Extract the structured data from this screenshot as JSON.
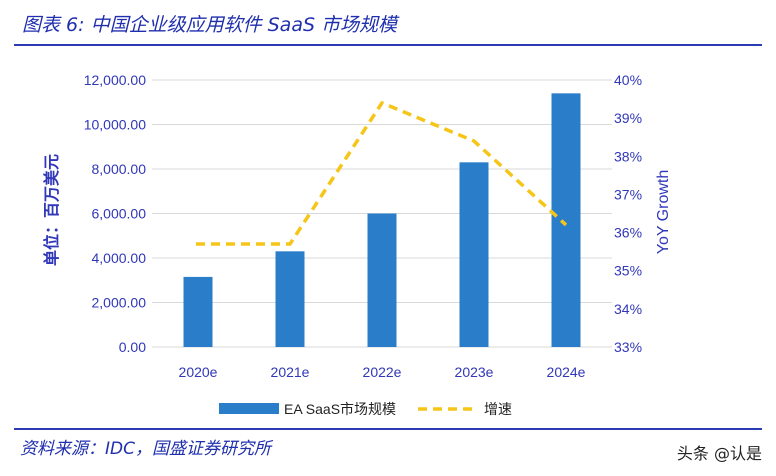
{
  "header": {
    "title": "图表 6:  中国企业级应用软件 SaaS 市场规模"
  },
  "footer": {
    "source": "资料来源：IDC，国盛证券研究所",
    "watermark": "头条 @认是"
  },
  "chart_data": {
    "type": "bar",
    "categories": [
      "2020e",
      "2021e",
      "2022e",
      "2023e",
      "2024e"
    ],
    "series": [
      {
        "name": "EA SaaS市场规模",
        "type": "bar",
        "axis": "left",
        "color": "#2a7ec9",
        "values": [
          3150,
          4300,
          6000,
          8300,
          11400
        ]
      },
      {
        "name": "增速",
        "type": "line",
        "axis": "right",
        "color": "#f5c518",
        "dashed": true,
        "values": [
          35.7,
          35.7,
          39.4,
          38.4,
          36.2
        ]
      }
    ],
    "ylabel": "单位：百万美元",
    "y2label": "YoY Growth",
    "ylim": [
      0,
      12000
    ],
    "y2lim": [
      33,
      40
    ],
    "yticks": [
      "0.00",
      "2,000.00",
      "4,000.00",
      "6,000.00",
      "8,000.00",
      "10,000.00",
      "12,000.00"
    ],
    "y2ticks": [
      "33%",
      "34%",
      "35%",
      "36%",
      "37%",
      "38%",
      "39%",
      "40%"
    ],
    "grid": true,
    "legend_position": "bottom"
  }
}
